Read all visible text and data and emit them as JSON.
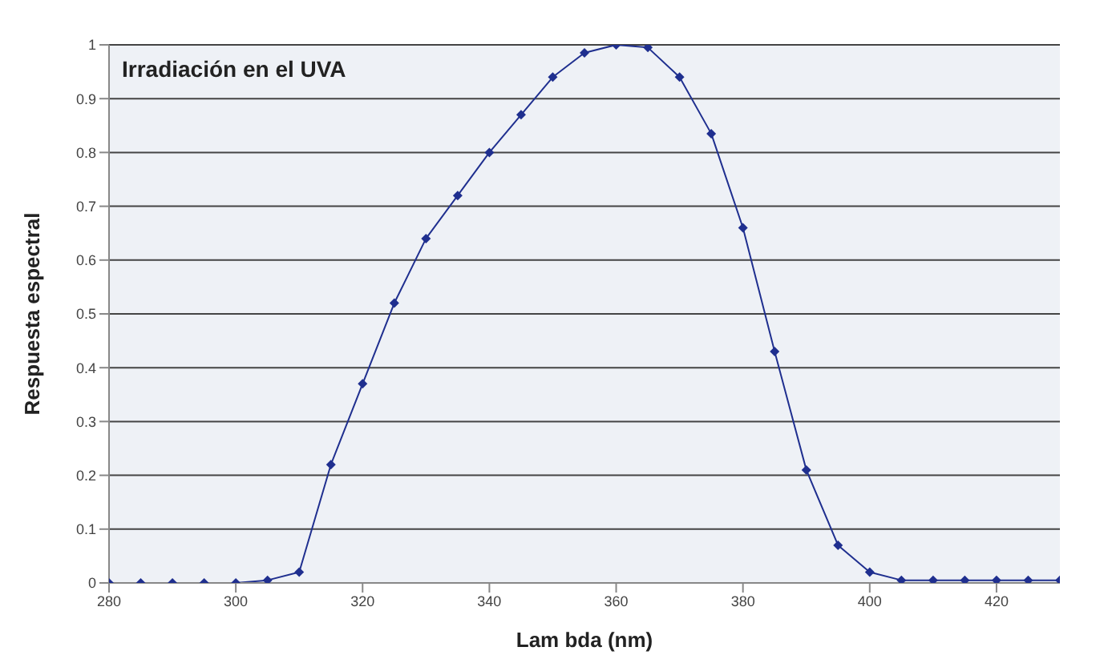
{
  "chart_data": {
    "type": "line",
    "title": "Irradiación en el UVA",
    "xlabel": "Lam bda (nm)",
    "ylabel": "Respuesta espectral",
    "x": [
      280,
      285,
      290,
      295,
      300,
      305,
      310,
      315,
      320,
      325,
      330,
      335,
      340,
      345,
      350,
      355,
      360,
      365,
      370,
      375,
      380,
      385,
      390,
      395,
      400,
      405,
      410,
      415,
      420,
      425,
      430
    ],
    "series": [
      {
        "color": "#1f2f8f",
        "values": [
          0,
          0,
          0,
          0,
          0,
          0.005,
          0.02,
          0.22,
          0.37,
          0.52,
          0.64,
          0.72,
          0.8,
          0.87,
          0.94,
          0.985,
          1,
          0.995,
          0.94,
          0.835,
          0.66,
          0.43,
          0.21,
          0.07,
          0.02,
          0.005,
          0.005,
          0.005,
          0.005,
          0.005,
          0.005
        ]
      }
    ],
    "xlim": [
      280,
      430
    ],
    "xticks": [
      280,
      300,
      320,
      340,
      360,
      380,
      400,
      420
    ],
    "ylim": [
      0,
      1
    ],
    "yticks": [
      0,
      0.1,
      0.2,
      0.3,
      0.4,
      0.5,
      0.6,
      0.7,
      0.8,
      0.9,
      1
    ],
    "grid": "y",
    "marker": "diamond",
    "line_style": "solid",
    "legend": false
  }
}
